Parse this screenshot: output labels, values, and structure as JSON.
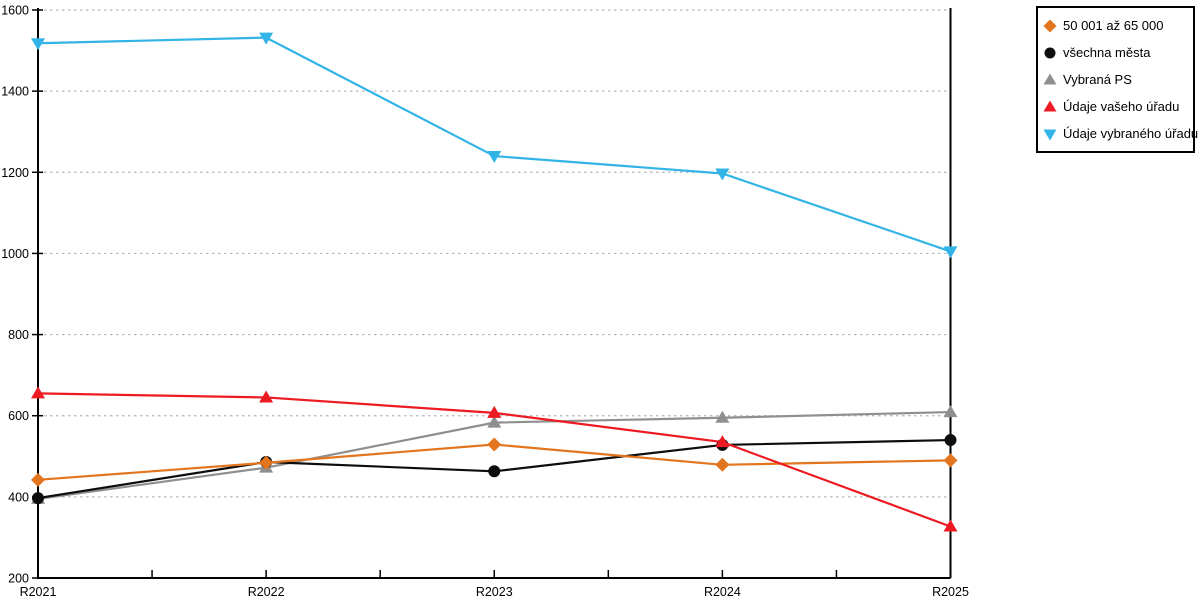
{
  "legend": {
    "items": [
      {
        "label": "50 001 až 65 000"
      },
      {
        "label": "všechna města"
      },
      {
        "label": "Vybraná PS"
      },
      {
        "label": "Údaje vašeho úřadu"
      },
      {
        "label": "Údaje vybraného úřadu"
      }
    ]
  },
  "chart_data": {
    "type": "line",
    "categories": [
      "R2021",
      "R2022",
      "R2023",
      "R2024",
      "R2025"
    ],
    "series": [
      {
        "name": "50 001 až 65 000",
        "marker": "diamond",
        "color": "#E2751E",
        "values": [
          442,
          484,
          529,
          479,
          490
        ]
      },
      {
        "name": "všechna města",
        "marker": "circle",
        "color": "#0D0D0D",
        "values": [
          397,
          486,
          463,
          528,
          540
        ]
      },
      {
        "name": "Vybraná PS",
        "marker": "triangle-up",
        "color": "#8F8F8F",
        "values": [
          395,
          472,
          583,
          595,
          609
        ]
      },
      {
        "name": "Údaje vašeho úřadu",
        "marker": "triangle-up",
        "color": "#EC1B23",
        "values": [
          655,
          645,
          607,
          535,
          327
        ]
      },
      {
        "name": "Údaje vybraného úřadu",
        "marker": "triangle-down",
        "color": "#33B4E6",
        "values": [
          1518,
          1532,
          1240,
          1197,
          1005
        ]
      }
    ],
    "draw_order": [
      2,
      1,
      0,
      3,
      4
    ],
    "ylim": [
      200,
      1600
    ],
    "y_ticks": [
      200,
      400,
      600,
      800,
      1000,
      1200,
      1400,
      1600
    ],
    "grid": "dotted horizontal lines at y ticks",
    "legend_position": "top-right outside plot",
    "colors": {
      "axis": "#000000",
      "gridline": "#B5B5B5",
      "background": "#FFFFFF"
    }
  }
}
